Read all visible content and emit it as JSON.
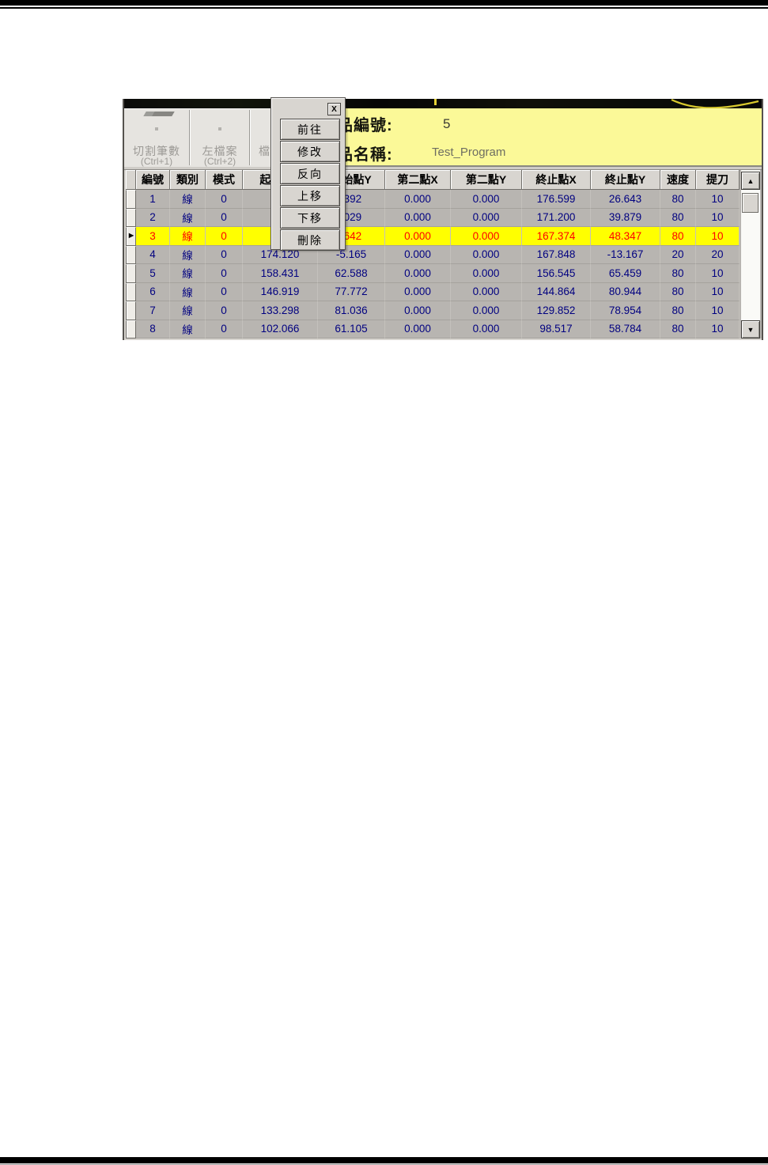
{
  "screenshot": {
    "toolbar": {
      "buttons": [
        {
          "label": "切割筆數",
          "shortcut": "(Ctrl+1)"
        },
        {
          "label": "左檔案",
          "shortcut": "(Ctrl+2)"
        },
        {
          "label": "檔",
          "shortcut": ""
        }
      ]
    },
    "info_panel": {
      "bg_color": "#fbf998",
      "fields": [
        {
          "label": "品編號:",
          "value": "5"
        },
        {
          "label": "品名稱:",
          "value": "Test_Program"
        }
      ]
    },
    "context_menu": {
      "close_icon": "X",
      "items": [
        {
          "label": "前往"
        },
        {
          "label": "修改"
        },
        {
          "label": "反向"
        },
        {
          "label": "上移"
        },
        {
          "label": "下移"
        },
        {
          "label": "刪除"
        }
      ]
    },
    "table": {
      "columns": [
        "編號",
        "類別",
        "模式",
        "起始點X",
        "起始點Y",
        "第二點X",
        "第二點Y",
        "終止點X",
        "終止點Y",
        "速度",
        "提刀"
      ],
      "selected_row_index": 2,
      "rows": [
        {
          "selected": false,
          "cells": [
            "1",
            "線",
            "0",
            "",
            ".392",
            "0.000",
            "0.000",
            "176.599",
            "26.643",
            "80",
            "10"
          ]
        },
        {
          "selected": false,
          "cells": [
            "2",
            "線",
            "0",
            "",
            ".029",
            "0.000",
            "0.000",
            "171.200",
            "39.879",
            "80",
            "10"
          ]
        },
        {
          "selected": true,
          "cells": [
            "3",
            "線",
            "0",
            "",
            ".642",
            "0.000",
            "0.000",
            "167.374",
            "48.347",
            "80",
            "10"
          ]
        },
        {
          "selected": false,
          "cells": [
            "4",
            "線",
            "0",
            "174.120",
            "-5.165",
            "0.000",
            "0.000",
            "167.848",
            "-13.167",
            "20",
            "20"
          ]
        },
        {
          "selected": false,
          "cells": [
            "5",
            "線",
            "0",
            "158.431",
            "62.588",
            "0.000",
            "0.000",
            "156.545",
            "65.459",
            "80",
            "10"
          ]
        },
        {
          "selected": false,
          "cells": [
            "6",
            "線",
            "0",
            "146.919",
            "77.772",
            "0.000",
            "0.000",
            "144.864",
            "80.944",
            "80",
            "10"
          ]
        },
        {
          "selected": false,
          "cells": [
            "7",
            "線",
            "0",
            "133.298",
            "81.036",
            "0.000",
            "0.000",
            "129.852",
            "78.954",
            "80",
            "10"
          ]
        },
        {
          "selected": false,
          "cells": [
            "8",
            "線",
            "0",
            "102.066",
            "61.105",
            "0.000",
            "0.000",
            "98.517",
            "58.784",
            "80",
            "10"
          ]
        }
      ],
      "colors": {
        "row_text": "#000080",
        "selected_row_bg": "#ffff00",
        "selected_row_text": "#ff0000"
      }
    },
    "icons": {
      "row_marker": "►",
      "scroll_up": "▲",
      "scroll_down": "▼"
    }
  }
}
